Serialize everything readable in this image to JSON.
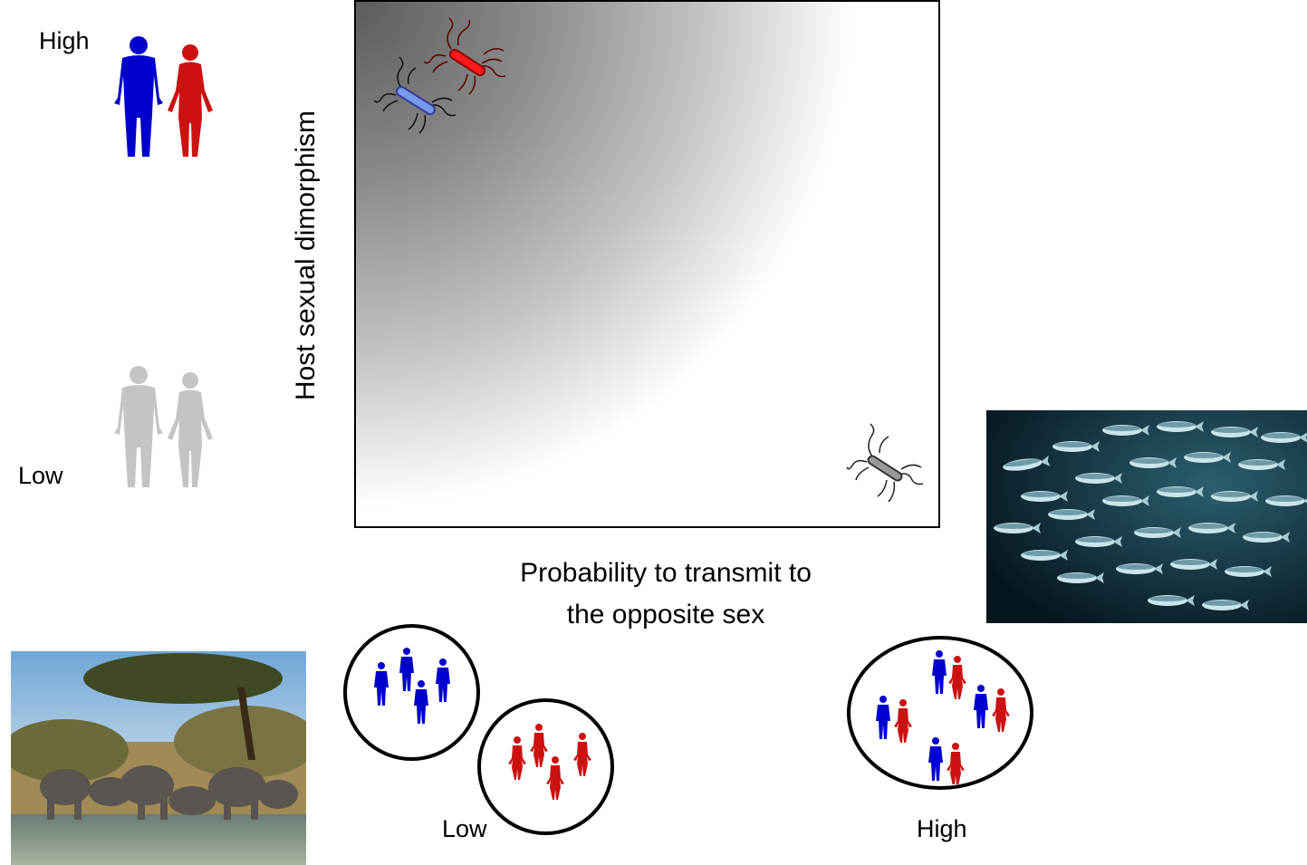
{
  "axes": {
    "y_label": "Host sexual dimorphism",
    "x_label_line1": "Probability to transmit to",
    "x_label_line2": "the opposite sex",
    "y_high": "High",
    "y_low": "Low",
    "x_low": "Low",
    "x_high": "High"
  },
  "colors": {
    "male": "#0000cc",
    "female": "#cc1111",
    "neutral": "#c4c4c4"
  },
  "icons": [
    "human-couple-icon",
    "bacterium-icon",
    "fish-school-photo",
    "elephant-herd-photo"
  ]
}
